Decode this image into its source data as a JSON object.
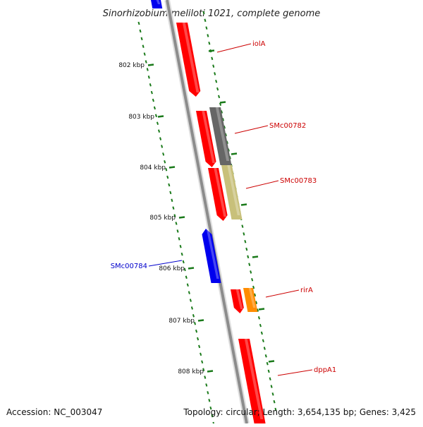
{
  "title": "Sinorhizobium meliloti 1021, complete genome",
  "footer": {
    "accession": "Accession: NC_003047",
    "summary": "Topology: circular; Length: 3,654,135 bp; Genes: 3,425"
  },
  "kbp_ticks": [
    {
      "label": "802 kbp",
      "kbp": 802
    },
    {
      "label": "803 kbp",
      "kbp": 803
    },
    {
      "label": "804 kbp",
      "kbp": 804
    },
    {
      "label": "805 kbp",
      "kbp": 805
    },
    {
      "label": "806 kbp",
      "kbp": 806
    },
    {
      "label": "807 kbp",
      "kbp": 807
    },
    {
      "label": "808 kbp",
      "kbp": 808
    }
  ],
  "genes": [
    {
      "name": "iolA",
      "strand": "forward",
      "color": "#ff0000",
      "labelColor": "#cc0000"
    },
    {
      "name": "SMc00782",
      "strand": "forward",
      "color": "#ff0000",
      "labelColor": "#cc0000"
    },
    {
      "name": "SMc00783",
      "strand": "forward",
      "color": "#ff0000",
      "labelColor": "#cc0000"
    },
    {
      "name": "SMc00784",
      "strand": "reverse",
      "color": "#0000ee",
      "labelColor": "#0000cc"
    },
    {
      "name": "rirA",
      "strand": "forward",
      "color": "#ff0000",
      "labelColor": "#cc0000"
    },
    {
      "name": "dppA1",
      "strand": "forward",
      "color": "#ff0000",
      "labelColor": "#cc0000"
    }
  ],
  "colors": {
    "backbone": "#8c8c8c",
    "dotted_track": "#1a7a1a",
    "gray_feature": "#666666",
    "khaki_feature": "#c8c07a",
    "orange_feature": "#ff8c00"
  }
}
